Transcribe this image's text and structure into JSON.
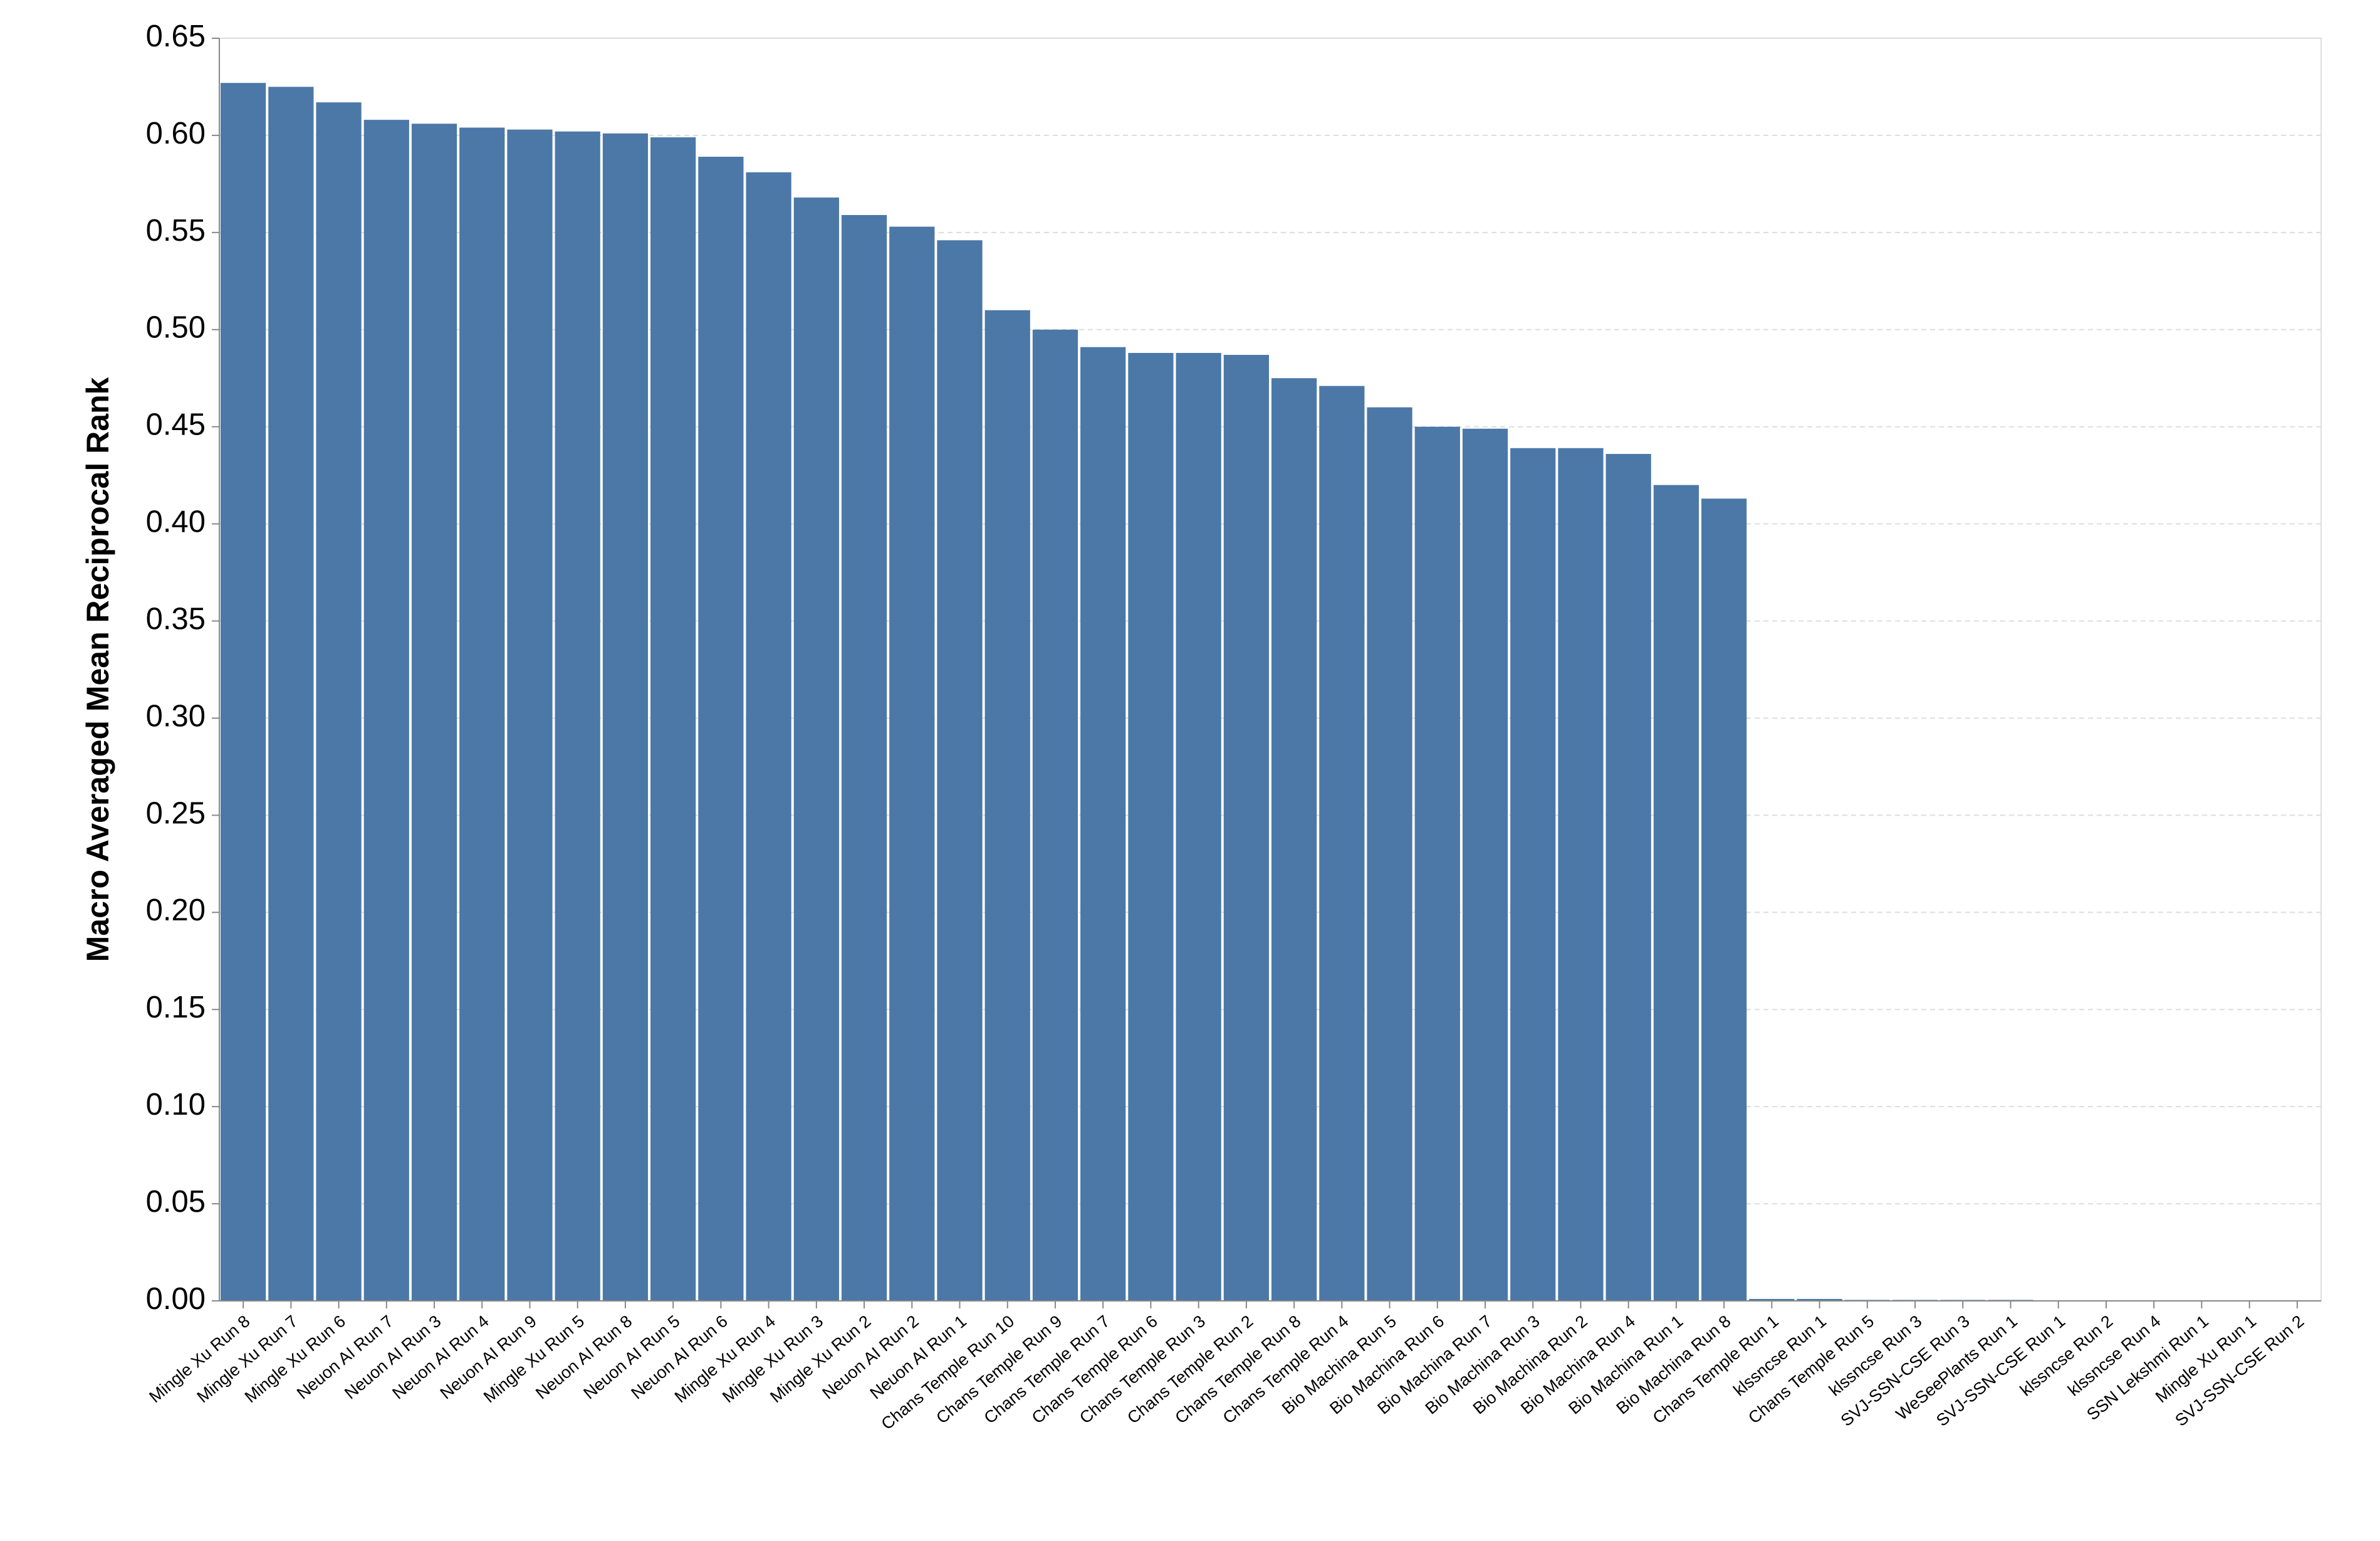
{
  "chart_data": {
    "type": "bar",
    "y_label": "Macro Averaged Mean Reciprocal Rank",
    "categories": [
      "Mingle Xu Run 8",
      "Mingle Xu Run 7",
      "Mingle Xu Run 6",
      "Neuon AI Run 7",
      "Neuon AI Run 3",
      "Neuon AI Run 4",
      "Neuon AI Run 9",
      "Mingle Xu Run 5",
      "Neuon AI Run 8",
      "Neuon AI Run 5",
      "Neuon AI Run 6",
      "Mingle Xu Run 4",
      "Mingle Xu Run 3",
      "Mingle Xu Run 2",
      "Neuon AI Run 2",
      "Neuon AI Run 1",
      "Chans Temple Run 10",
      "Chans Temple Run 9",
      "Chans Temple Run 7",
      "Chans Temple Run 6",
      "Chans Temple Run 3",
      "Chans Temple Run 2",
      "Chans Temple Run 8",
      "Chans Temple Run 4",
      "Bio Machina Run 5",
      "Bio Machina Run 6",
      "Bio Machina Run 7",
      "Bio Machina Run 3",
      "Bio Machina Run 2",
      "Bio Machina Run 4",
      "Bio Machina Run 1",
      "Bio Machina Run 8",
      "Chans Temple Run 1",
      "klssncse Run 1",
      "Chans Temple Run 5",
      "klssncse Run 3",
      "SVJ-SSN-CSE Run 3",
      "WeSeePlants Run 1",
      "SVJ-SSN-CSE Run 1",
      "klssncse Run 2",
      "klssncse Run 4",
      "SSN Lekshmi Run 1",
      "Mingle Xu Run 1",
      "SVJ-SSN-CSE Run 2"
    ],
    "values": [
      0.627,
      0.625,
      0.617,
      0.608,
      0.606,
      0.604,
      0.603,
      0.602,
      0.601,
      0.599,
      0.589,
      0.581,
      0.568,
      0.559,
      0.553,
      0.546,
      0.51,
      0.5,
      0.491,
      0.488,
      0.488,
      0.487,
      0.475,
      0.471,
      0.46,
      0.45,
      0.449,
      0.439,
      0.439,
      0.436,
      0.42,
      0.413,
      0.001,
      0.001,
      0.0005,
      0.0005,
      0.0005,
      0.0005,
      0,
      0,
      0,
      0,
      0,
      0
    ],
    "color": "#4c78a8",
    "ylim": [
      0,
      0.65
    ],
    "yticks": [
      {
        "value": 0,
        "label": "0.00"
      },
      0.05,
      {
        "value": 0.1,
        "label": "0.10"
      },
      0.15,
      {
        "value": 0.2,
        "label": "0.20"
      },
      0.25,
      {
        "value": 0.3,
        "label": "0.30"
      },
      0.35,
      {
        "value": 0.4,
        "label": "0.40"
      },
      0.45,
      {
        "value": 0.5,
        "label": "0.50"
      },
      0.55,
      {
        "value": 0.6,
        "label": "0.60"
      },
      0.65
    ],
    "grid": true
  }
}
